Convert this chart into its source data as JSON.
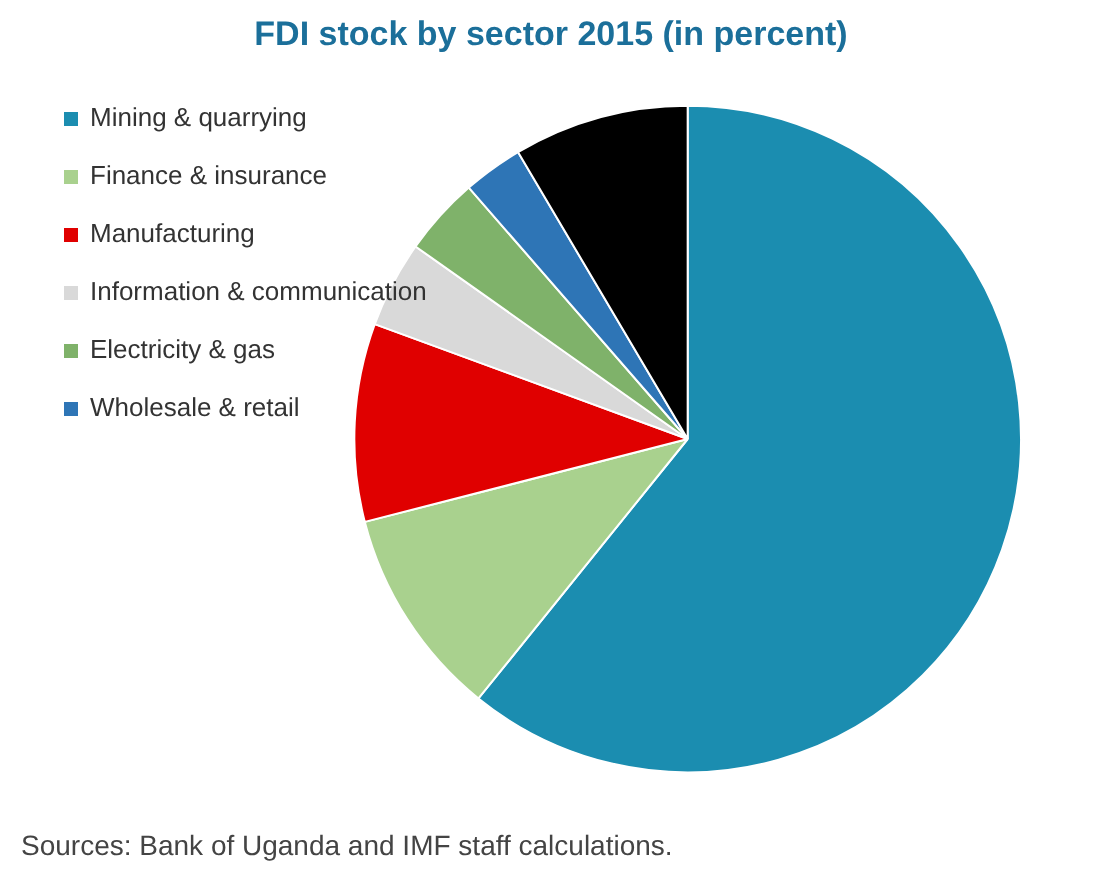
{
  "chart_data": {
    "type": "pie",
    "title": "FDI stock by sector 2015 (in percent)",
    "categories": [
      "Mining & quarrying",
      "Finance & insurance",
      "Manufacturing",
      "Information & communication",
      "Electricity & gas",
      "Wholesale & retail",
      null
    ],
    "values": [
      60.8,
      10.2,
      9.6,
      4.2,
      3.8,
      2.9,
      8.5
    ],
    "colors": [
      "#1b8db0",
      "#a9d18e",
      "#e00000",
      "#d9d9d9",
      "#7fb26a",
      "#2e75b6",
      "#000000"
    ],
    "legend": "left",
    "annotations": [
      "Sources: Bank of Uganda and IMF staff calculations."
    ]
  }
}
